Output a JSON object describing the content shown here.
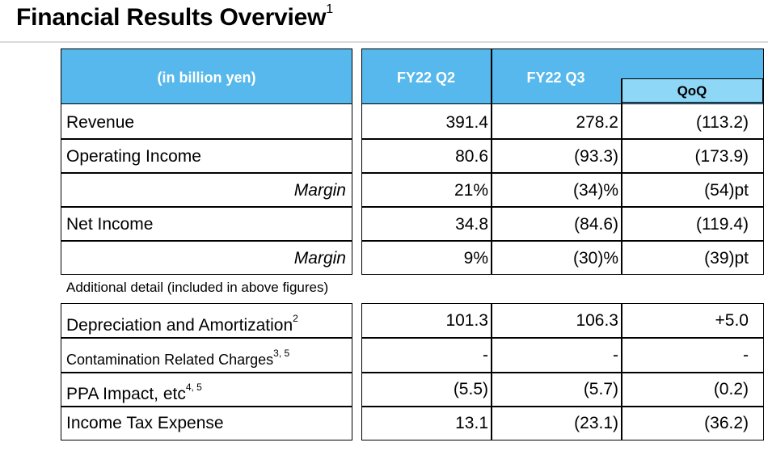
{
  "title": "Financial Results Overview",
  "title_sup": "1",
  "header": {
    "unit_label": "(in billion yen)",
    "col1": "FY22 Q2",
    "col2": "FY22 Q3",
    "col3": "QoQ"
  },
  "colors": {
    "header_blue": "#56b8ec",
    "qoq_blue": "#8fd7f6"
  },
  "rows": [
    {
      "label": "Revenue",
      "v1": "391.4",
      "v2": "278.2",
      "v3": "(113.2)"
    },
    {
      "label": "Operating Income",
      "v1": "80.6",
      "v2": "(93.3)",
      "v3": "(173.9)"
    },
    {
      "label": "Margin",
      "v1": "21%",
      "v2": "(34)%",
      "v3": "(54)pt"
    },
    {
      "label": "Net Income",
      "v1": "34.8",
      "v2": "(84.6)",
      "v3": "(119.4)"
    },
    {
      "label": "Margin",
      "v1": "9%",
      "v2": "(30)%",
      "v3": "(39)pt"
    }
  ],
  "additional_note": "Additional detail (included in above figures)",
  "detail_rows": [
    {
      "label": "Depreciation and Amortization",
      "sup": "2",
      "v1": "101.3",
      "v2": "106.3",
      "v3": "+5.0"
    },
    {
      "label": "Contamination Related Charges",
      "sup": "3, 5",
      "v1": "-",
      "v2": "-",
      "v3": "-"
    },
    {
      "label": "PPA Impact, etc",
      "sup": "4, 5",
      "v1": "(5.5)",
      "v2": "(5.7)",
      "v3": "(0.2)"
    },
    {
      "label": "Income Tax Expense",
      "sup": "",
      "v1": "13.1",
      "v2": "(23.1)",
      "v3": "(36.2)"
    }
  ]
}
